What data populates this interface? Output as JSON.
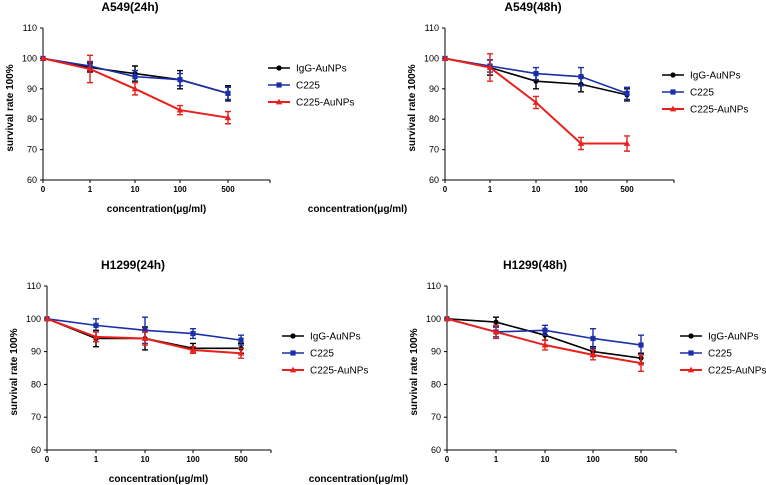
{
  "chart_data": [
    {
      "type": "line",
      "title": "A549(24h)",
      "xlabel": "concentration(μg/ml)",
      "ylabel": "survival rate 100%",
      "categories": [
        "0",
        "1",
        "10",
        "100",
        "500"
      ],
      "ylim": [
        60,
        110
      ],
      "yticks": [
        "60",
        "70",
        "80",
        "90",
        "100",
        "110"
      ],
      "legend_position": "right",
      "series": [
        {
          "name": "IgG-AuNPs",
          "color": "#000000",
          "marker": "circle",
          "values": [
            100,
            97,
            95,
            93,
            88.5
          ],
          "errors": [
            0,
            1.5,
            2.5,
            3,
            2.5
          ]
        },
        {
          "name": "C225",
          "color": "#1a2fa8",
          "marker": "square",
          "values": [
            100,
            97.5,
            94,
            93,
            88.5
          ],
          "errors": [
            0,
            1.5,
            2,
            2,
            2
          ]
        },
        {
          "name": "C225-AuNPs",
          "color": "#e8201c",
          "marker": "triangle",
          "values": [
            100,
            96.5,
            90,
            83,
            80.5
          ],
          "errors": [
            0,
            4.5,
            2,
            1.5,
            2
          ]
        }
      ]
    },
    {
      "type": "line",
      "title": "A549(48h)",
      "xlabel": "concentration(μg/ml)",
      "ylabel": "survival rate 100%",
      "categories": [
        "0",
        "1",
        "10",
        "100",
        "500"
      ],
      "ylim": [
        60,
        110
      ],
      "yticks": [
        "60",
        "70",
        "80",
        "90",
        "100",
        "110"
      ],
      "legend_position": "right",
      "series": [
        {
          "name": "IgG-AuNPs",
          "color": "#000000",
          "marker": "circle",
          "values": [
            100,
            97,
            92.5,
            91.5,
            88
          ],
          "errors": [
            0,
            2.5,
            2.5,
            2.5,
            2
          ]
        },
        {
          "name": "C225",
          "color": "#1a2fa8",
          "marker": "square",
          "values": [
            100,
            97.5,
            95,
            94,
            88.5
          ],
          "errors": [
            0,
            2,
            2,
            3,
            2
          ]
        },
        {
          "name": "C225-AuNPs",
          "color": "#e8201c",
          "marker": "triangle",
          "values": [
            100,
            97,
            85.5,
            72,
            72
          ],
          "errors": [
            0,
            4.5,
            2,
            2,
            2.5
          ]
        }
      ]
    },
    {
      "type": "line",
      "title": "H1299(24h)",
      "xlabel": "concentration(μg/ml)",
      "ylabel": "survival rate 100%",
      "categories": [
        "0",
        "1",
        "10",
        "100",
        "500"
      ],
      "ylim": [
        60,
        110
      ],
      "yticks": [
        "60",
        "70",
        "80",
        "90",
        "100",
        "110"
      ],
      "legend_position": "right",
      "series": [
        {
          "name": "IgG-AuNPs",
          "color": "#000000",
          "marker": "circle",
          "values": [
            100,
            94,
            94,
            91,
            91
          ],
          "errors": [
            0,
            2.5,
            3.5,
            1.5,
            1.5
          ]
        },
        {
          "name": "C225",
          "color": "#1a2fa8",
          "marker": "square",
          "values": [
            100,
            98,
            96.5,
            95.5,
            93.5
          ],
          "errors": [
            0,
            2,
            4,
            1.5,
            1.5
          ]
        },
        {
          "name": "C225-AuNPs",
          "color": "#e8201c",
          "marker": "triangle",
          "values": [
            100,
            94.5,
            94,
            90.5,
            89.5
          ],
          "errors": [
            0,
            1.5,
            2,
            1,
            1.5
          ]
        }
      ]
    },
    {
      "type": "line",
      "title": "H1299(48h)",
      "xlabel": "concentration(μg/ml)",
      "ylabel": "survival rate 100%",
      "categories": [
        "0",
        "1",
        "10",
        "100",
        "500"
      ],
      "ylim": [
        60,
        110
      ],
      "yticks": [
        "60",
        "70",
        "80",
        "90",
        "100",
        "110"
      ],
      "legend_position": "right",
      "series": [
        {
          "name": "IgG-AuNPs",
          "color": "#000000",
          "marker": "circle",
          "values": [
            100,
            99,
            95,
            90,
            88
          ],
          "errors": [
            0,
            1.5,
            1.5,
            1.5,
            1.5
          ]
        },
        {
          "name": "C225",
          "color": "#1a2fa8",
          "marker": "square",
          "values": [
            100,
            96,
            96.5,
            94,
            92
          ],
          "errors": [
            0,
            1.5,
            1.5,
            3,
            3
          ]
        },
        {
          "name": "C225-AuNPs",
          "color": "#e8201c",
          "marker": "triangle",
          "values": [
            100,
            96,
            92,
            89,
            86.5
          ],
          "errors": [
            0,
            2,
            1.5,
            1.5,
            2.5
          ]
        }
      ]
    }
  ]
}
